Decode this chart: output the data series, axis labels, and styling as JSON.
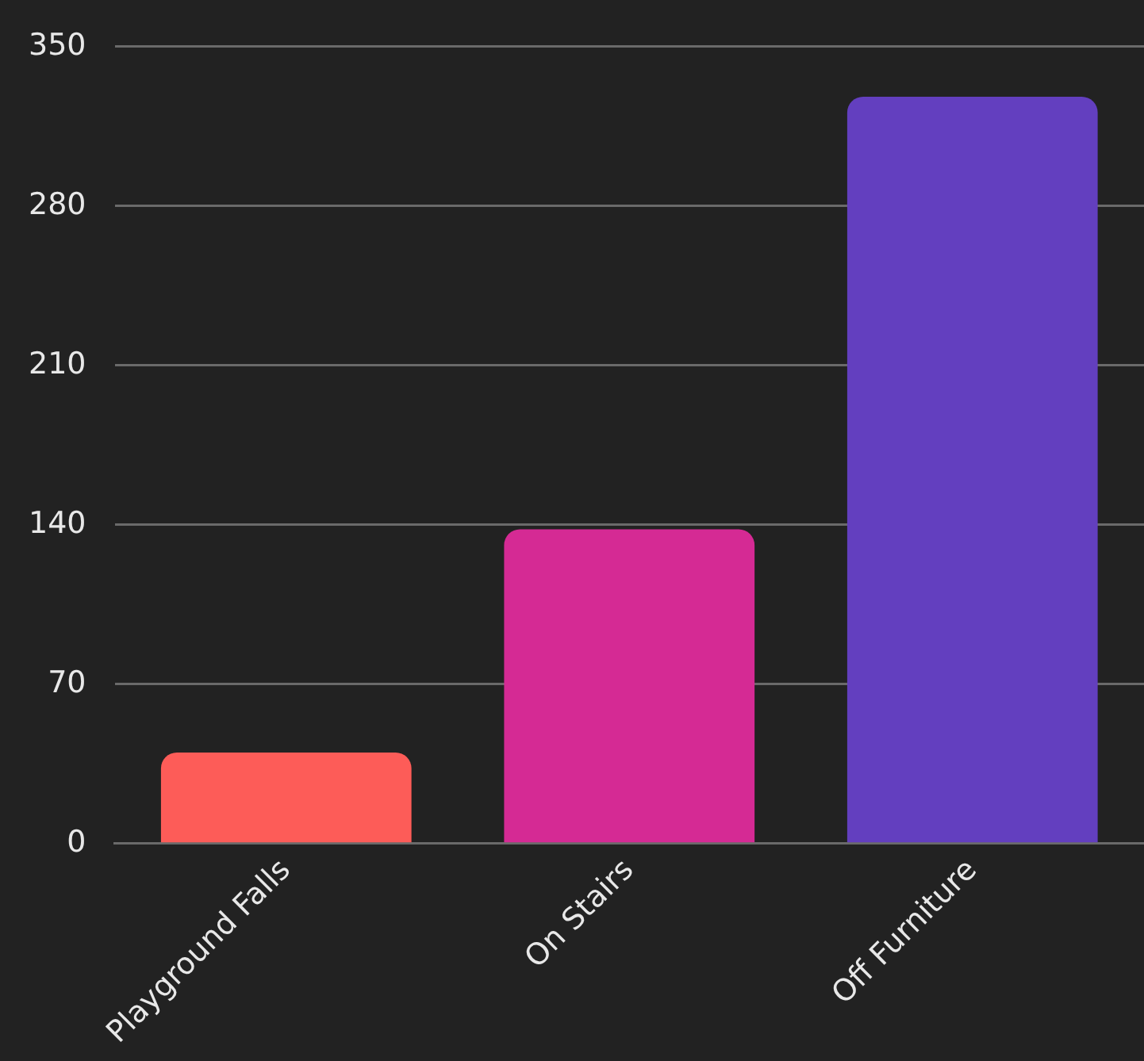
{
  "chart_data": {
    "type": "bar",
    "categories": [
      "Playground Falls",
      "On Stairs",
      "Off Furniture"
    ],
    "values": [
      40,
      138,
      328
    ],
    "colors": [
      "#fd5c58",
      "#d52a94",
      "#633fbf"
    ],
    "ylim": [
      0,
      350
    ],
    "yticks": [
      0,
      70,
      140,
      210,
      280,
      350
    ],
    "grid": "y",
    "legend": false
  }
}
